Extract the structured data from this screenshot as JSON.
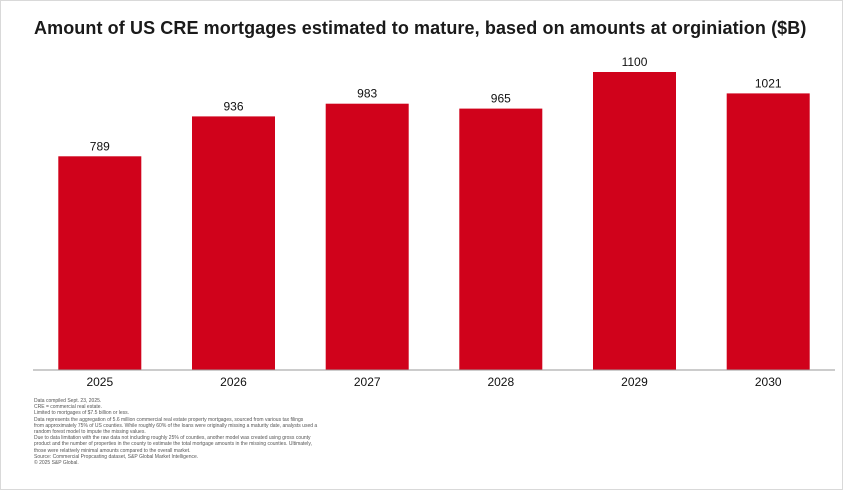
{
  "chart_data": {
    "type": "bar",
    "title": "Amount of US CRE mortgages estimated to mature, based on amounts at orginiation ($B)",
    "categories": [
      "2025",
      "2026",
      "2027",
      "2028",
      "2029",
      "2030"
    ],
    "values": [
      789,
      936,
      983,
      965,
      1100,
      1021
    ],
    "ylim": [
      0,
      1100
    ],
    "xlabel": "",
    "ylabel": "",
    "grid": false,
    "legend": "none",
    "bar_color": "#d0021b",
    "baseline_color": "#9a9a9a"
  },
  "notes": [
    "Data compiled Sept. 23, 2025.",
    "CRE = commercial real estate.",
    "Limited to mortgages of $7.5 billion or less.",
    "Data represents the aggregation of 5.6 million commercial real estate property mortgages, sourced from various tax filings",
    "from approximately 75% of US counties. While roughly 60% of the loans were originally missing a maturity date, analysts used a",
    "random forest model to impute the missing values.",
    "Due to data limitation with the raw data not including roughly 25% of counties, another model was created using gross county",
    "product and the number of properties in the county to estimate the total mortgage amounts in the missing counties. Ultimately,",
    "those were relatively minimal amounts compared to the overall market.",
    "Source: Commercial Propcasting dataset, S&P Global Market Intelligence.",
    "© 2025 S&P Global."
  ]
}
